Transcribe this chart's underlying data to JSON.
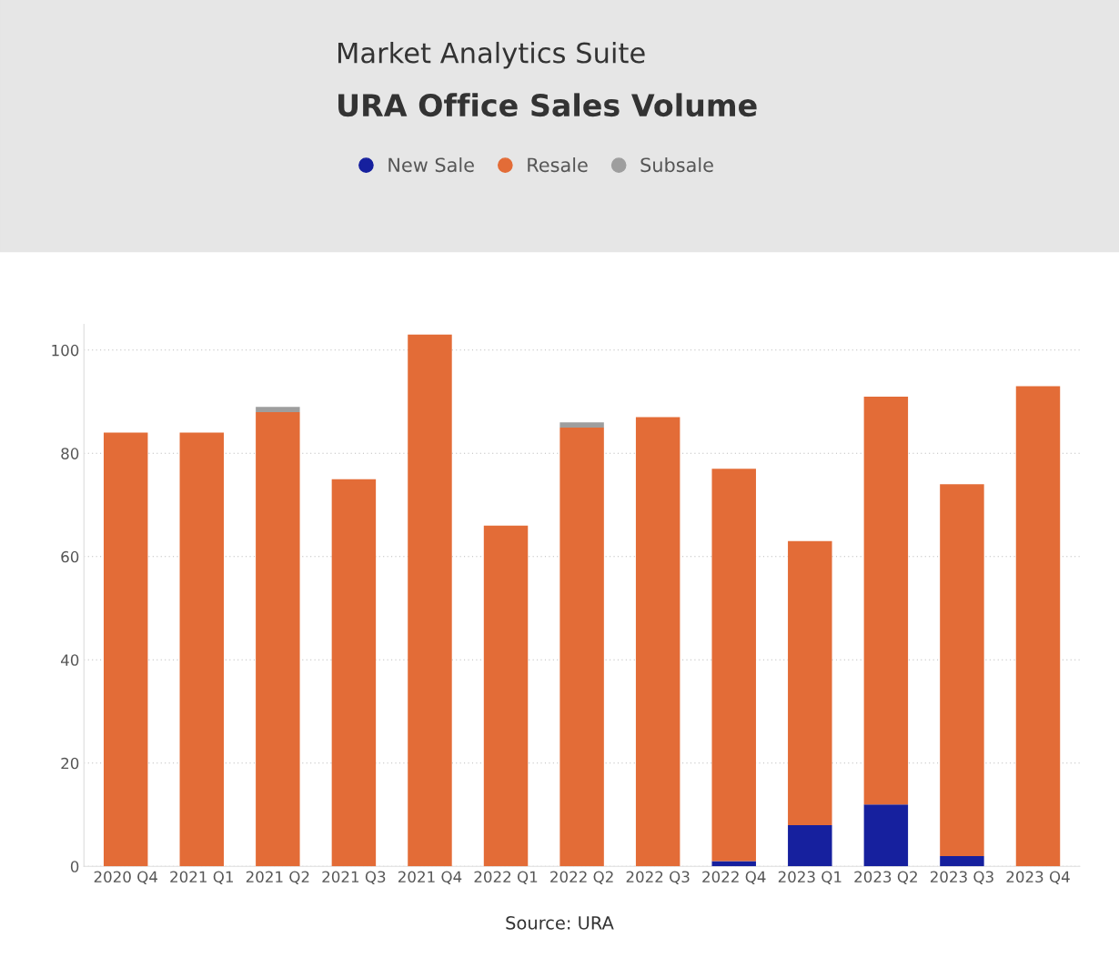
{
  "chart_data": {
    "type": "bar",
    "subtitle": "Market Analytics Suite",
    "title": "URA Office Sales Volume",
    "categories": [
      "2020 Q4",
      "2021 Q1",
      "2021 Q2",
      "2021 Q3",
      "2021 Q4",
      "2022 Q1",
      "2022 Q2",
      "2022 Q3",
      "2022 Q4",
      "2023 Q1",
      "2023 Q2",
      "2023 Q3",
      "2023 Q4"
    ],
    "series": [
      {
        "name": "New Sale",
        "color": "#16209e",
        "values": [
          0,
          0,
          0,
          0,
          0,
          0,
          0,
          0,
          1,
          8,
          12,
          2,
          0
        ]
      },
      {
        "name": "Resale",
        "color": "#e36c37",
        "values": [
          84,
          84,
          88,
          75,
          103,
          66,
          85,
          87,
          76,
          55,
          79,
          72,
          93
        ]
      },
      {
        "name": "Subsale",
        "color": "#9e9e9e",
        "values": [
          0,
          0,
          1,
          0,
          0,
          0,
          1,
          0,
          0,
          0,
          0,
          0,
          0
        ]
      }
    ],
    "stacked": true,
    "ylim": [
      0,
      105
    ],
    "yticks": [
      0,
      20,
      40,
      60,
      80,
      100
    ],
    "grid": "y",
    "legend": "top left",
    "annotations": [
      "Source: URA"
    ]
  }
}
